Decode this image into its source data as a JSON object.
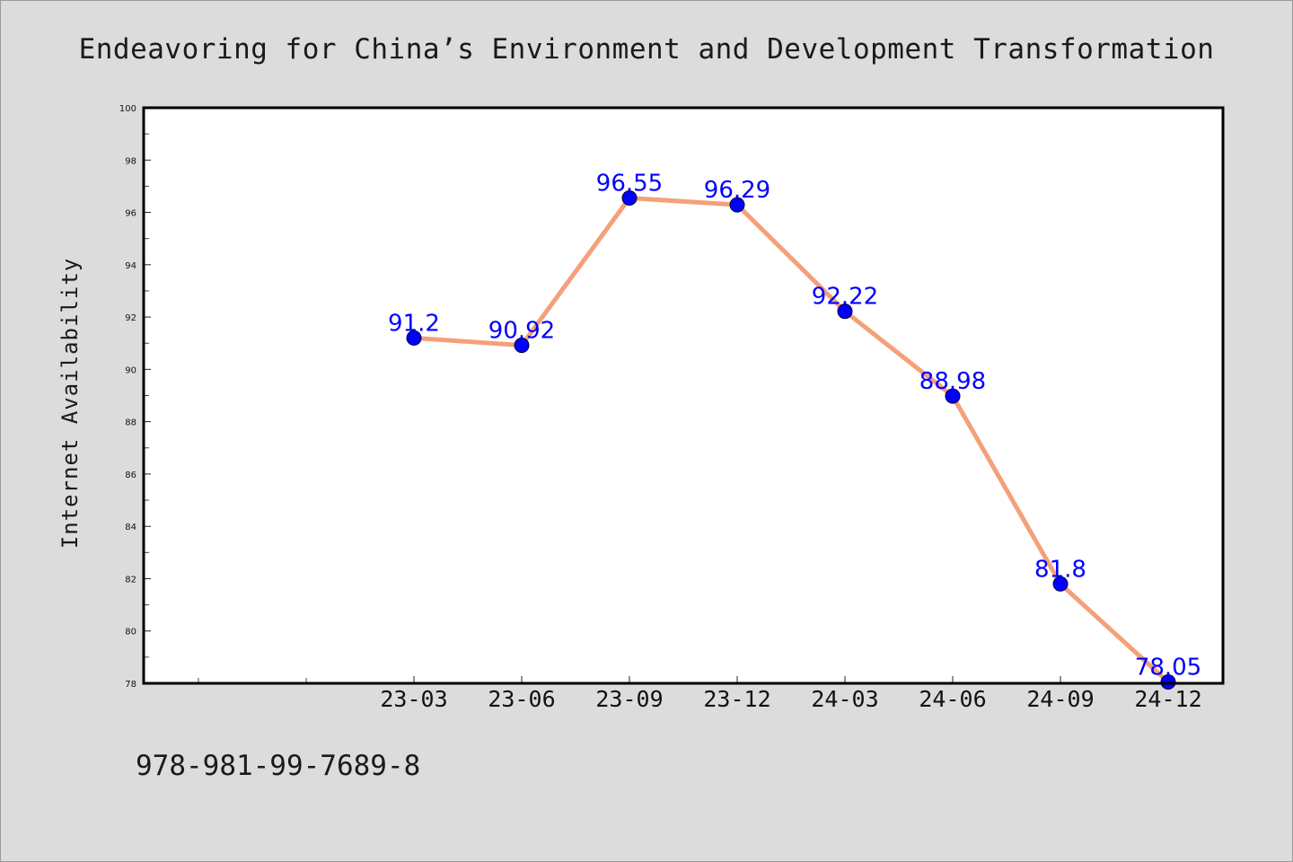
{
  "chart_data": {
    "type": "line",
    "title": "Endeavoring for China’s Environment and Development Transformation",
    "xlabel": "",
    "ylabel": "Internet Availability",
    "categories": [
      "23-03",
      "23-06",
      "23-09",
      "23-12",
      "24-03",
      "24-06",
      "24-09",
      "24-12"
    ],
    "series": [
      {
        "values": [
          91.2,
          90.92,
          96.55,
          96.29,
          92.22,
          88.98,
          81.8,
          78.05
        ]
      }
    ],
    "data_labels": [
      "91.2",
      "90.92",
      "96.55",
      "96.29",
      "92.22",
      "88.98",
      "81.8",
      "78.05"
    ],
    "ylim": [
      78,
      100
    ],
    "yticks": [
      78,
      80,
      82,
      84,
      86,
      88,
      90,
      92,
      94,
      96,
      98,
      100
    ],
    "grid": false,
    "legend": "none",
    "colors": {
      "line": "#f4a07a",
      "marker": "#0000ff",
      "data_label": "#0000ff",
      "background": "#dcdcdc",
      "plot_area": "#ffffff"
    }
  },
  "footer": {
    "code": "978-981-99-7689-8"
  }
}
